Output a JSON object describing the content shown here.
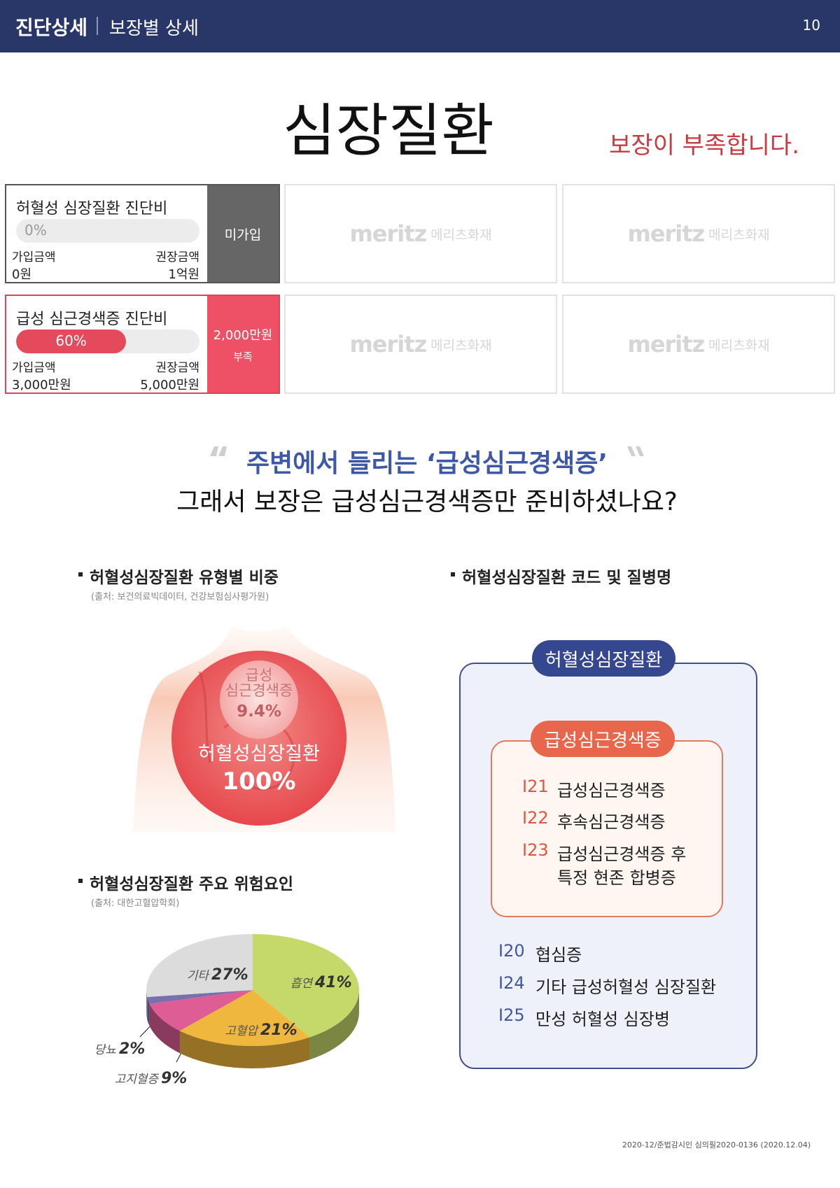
{
  "header": {
    "section": "진단상세",
    "subsection": "보장별 상세",
    "page": 10
  },
  "title": "심장질환",
  "status": "보장이 부족합니다.",
  "coverages": [
    {
      "name": "허혈성 심장질환 진단비",
      "percent": 0,
      "percent_label": "0%",
      "enrolled_label": "가입금액",
      "enrolled": "0원",
      "recommended_label": "권장금액",
      "recommended": "1억원",
      "status": "미가입"
    },
    {
      "name": "급성 심근경색증 진단비",
      "percent": 60,
      "percent_label": "60%",
      "enrolled_label": "가입금액",
      "enrolled": "3,000만원",
      "recommended_label": "권장금액",
      "recommended": "5,000만원",
      "status": "2,000만원",
      "status_note": "부족"
    }
  ],
  "insurer_logo": {
    "brand": "meritz",
    "name": "메리츠화재"
  },
  "quote": {
    "highlight": "주변에서 들리는 ‘급성심근경색증’",
    "question": "그래서 보장은 급성심근경색증만 준비하셨나요?"
  },
  "type_share": {
    "title": "허혈성심장질환 유형별 비중",
    "source": "(출처: 보건의료빅데이터, 건강보험심사평가원)",
    "inner_name_lines": [
      "급성",
      "심근경색증"
    ],
    "inner_value": "9.4%",
    "outer_name": "허혈성심장질환",
    "outer_value": "100%"
  },
  "risk_factors": {
    "title": "허혈성심장질환 주요 위험요인",
    "source": "(출처: 대한고혈압학회)",
    "categories": [
      "흡연",
      "고혈압",
      "고지혈증",
      "당뇨",
      "기타"
    ],
    "values": [
      41,
      21,
      9,
      2,
      27
    ],
    "value_labels": [
      "41%",
      "21%",
      "9%",
      "2%",
      "27%"
    ],
    "colors": [
      "#c5d86a",
      "#f0b73e",
      "#de5d95",
      "#7b70ae",
      "#dcdcdc"
    ]
  },
  "codes": {
    "title": "허혈성심장질환 코드 및 질병명",
    "group": "허혈성심장질환",
    "subgroup": "급성심근경색증",
    "sub_items": [
      {
        "code": "I21",
        "name_lines": [
          "급성심근경색증"
        ]
      },
      {
        "code": "I22",
        "name_lines": [
          "후속심근경색증"
        ]
      },
      {
        "code": "I23",
        "name_lines": [
          "급성심근경색증 후",
          "특정 현존 합병증"
        ]
      }
    ],
    "items": [
      {
        "code": "I20",
        "name": "협심증"
      },
      {
        "code": "I24",
        "name": "기타 급성허혈성 심장질환"
      },
      {
        "code": "I25",
        "name": "만성 허혈성 심장병"
      }
    ]
  },
  "footer": "2020-12/준법감시인 심의필2020-0136 (2020.12.04)"
}
